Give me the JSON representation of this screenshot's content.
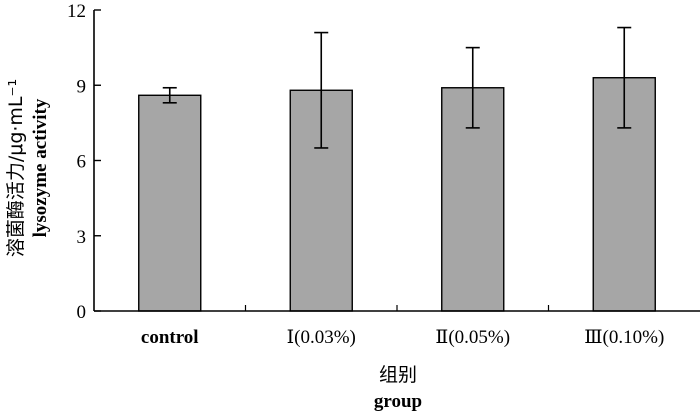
{
  "chart_data": {
    "type": "bar",
    "categories": [
      "control",
      "Ⅰ(0.03%)",
      "Ⅱ(0.05%)",
      "Ⅲ(0.10%)"
    ],
    "series": [
      {
        "values": [
          8.6,
          8.8,
          8.9,
          9.3
        ],
        "error_low": [
          8.3,
          6.5,
          7.3,
          7.3
        ],
        "error_high": [
          8.9,
          11.1,
          10.5,
          11.3
        ]
      }
    ],
    "ylim": [
      0,
      12
    ],
    "yticks": [
      0,
      3,
      6,
      9,
      12
    ],
    "ytick_labels": [
      "0",
      "3",
      "6",
      "9",
      "12"
    ],
    "xlabel_cn": "组别",
    "xlabel_en": "group",
    "ylabel_cn": "溶菌酶活力/μg·mL⁻¹",
    "ylabel_en": "lysozyme activity",
    "bar_color": "#a6a6a6",
    "grid": false,
    "legend": "none"
  }
}
